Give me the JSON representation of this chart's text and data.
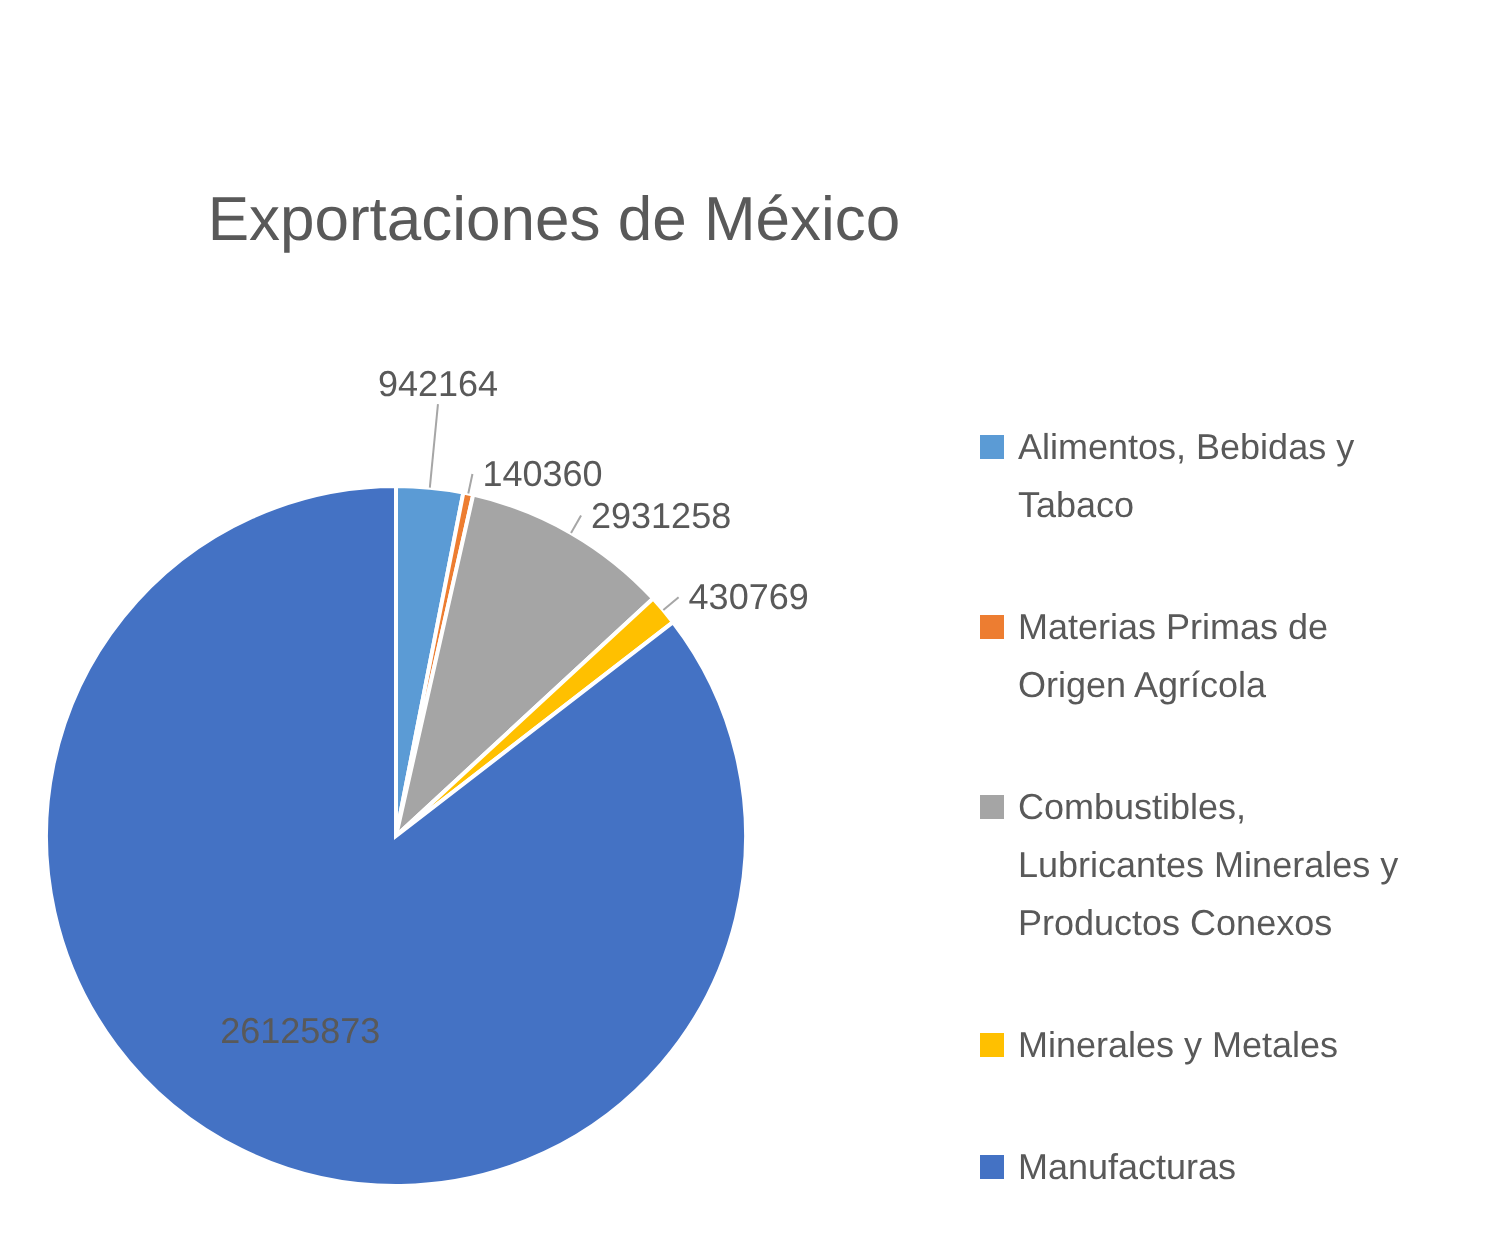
{
  "chart_data": {
    "type": "pie",
    "title": "Exportaciones de México",
    "categories": [
      "Alimentos, Bebidas y Tabaco",
      "Materias Primas de Origen Agrícola",
      "Combustibles, Lubricantes Minerales y Productos Conexos",
      "Minerales y Metales",
      "Manufacturas"
    ],
    "values": [
      942164,
      140360,
      2931258,
      430769,
      26125873
    ],
    "colors": [
      "#5b9bd5",
      "#ed7d31",
      "#a5a5a5",
      "#ffc000",
      "#4472c4"
    ],
    "data_labels": true,
    "legend": "right"
  }
}
